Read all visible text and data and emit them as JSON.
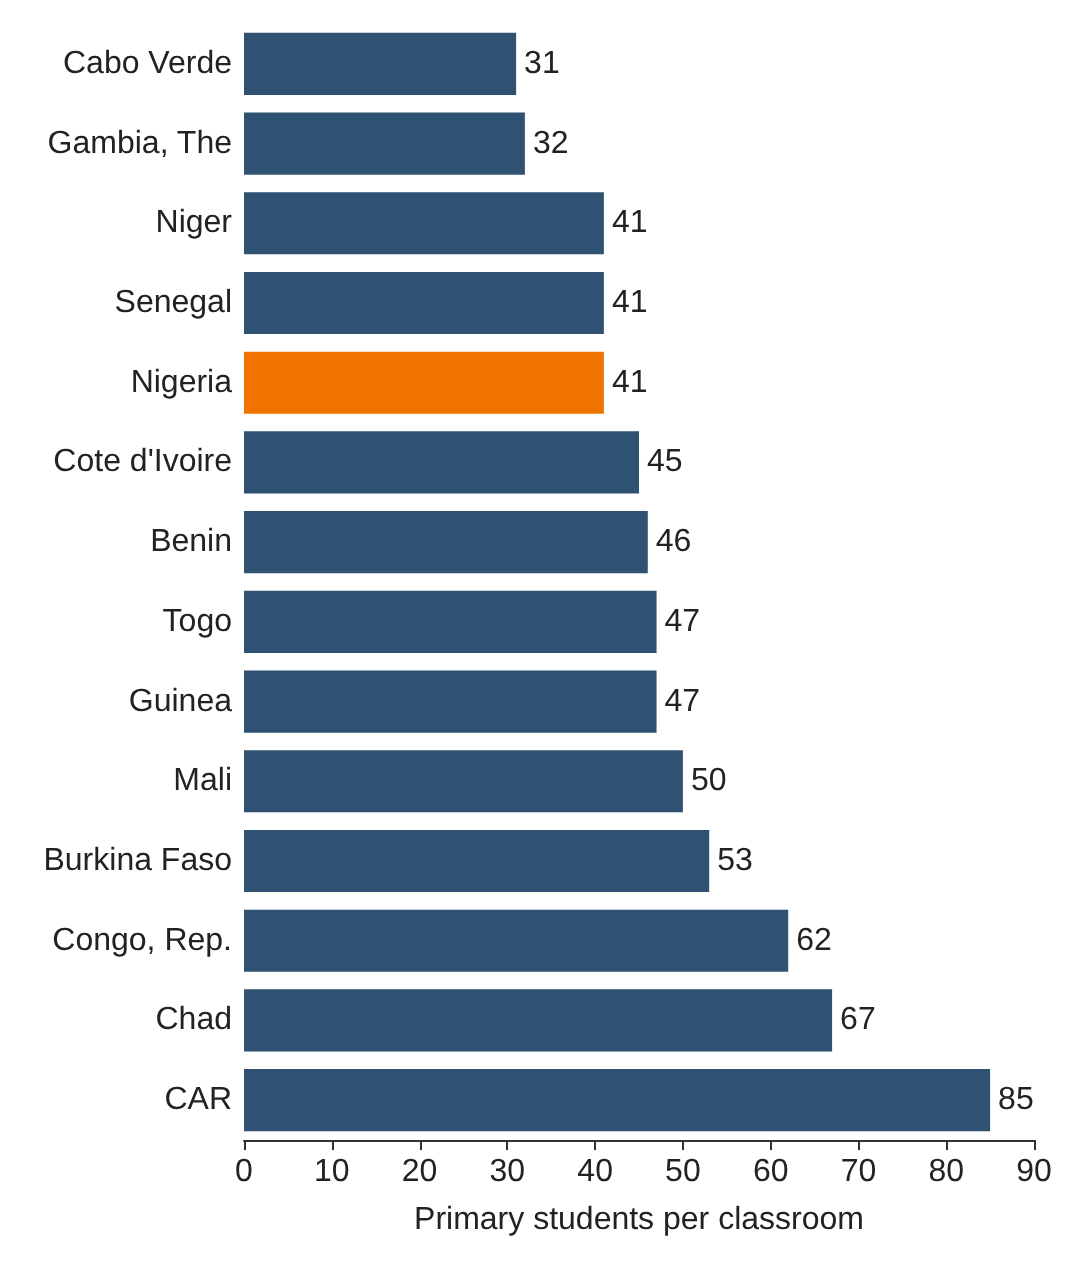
{
  "chart_data": {
    "type": "bar",
    "orientation": "horizontal",
    "xlabel": "Primary students per classroom",
    "categories": [
      "Cabo Verde",
      "Gambia, The",
      "Niger",
      "Senegal",
      "Nigeria",
      "Cote d'Ivoire",
      "Benin",
      "Togo",
      "Guinea",
      "Mali",
      "Burkina Faso",
      "Congo, Rep.",
      "Chad",
      "CAR"
    ],
    "values": [
      31,
      32,
      41,
      41,
      41,
      45,
      46,
      47,
      47,
      50,
      53,
      62,
      67,
      85
    ],
    "colors": [
      "#2f5272",
      "#2f5272",
      "#2f5272",
      "#2f5272",
      "#f07300",
      "#2f5272",
      "#2f5272",
      "#2f5272",
      "#2f5272",
      "#2f5272",
      "#2f5272",
      "#2f5272",
      "#2f5272",
      "#2f5272"
    ],
    "xlim": [
      0,
      90
    ],
    "xticks": [
      0,
      10,
      20,
      30,
      40,
      50,
      60,
      70,
      80,
      90
    ],
    "grid": false,
    "data_labels": true
  }
}
